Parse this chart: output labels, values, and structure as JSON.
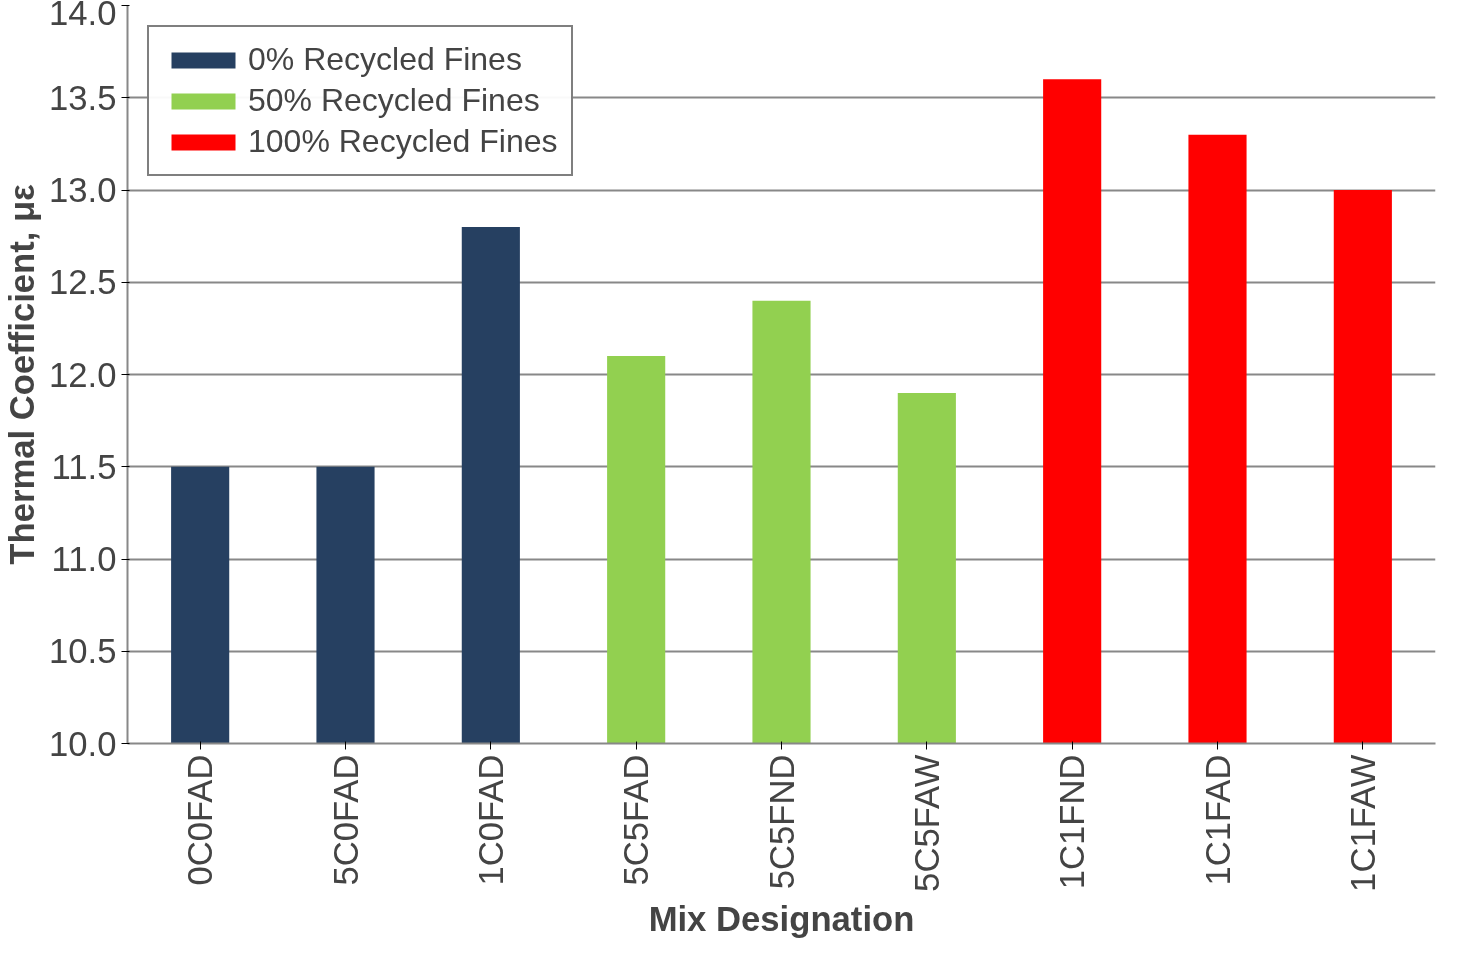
{
  "chart_data": {
    "type": "bar",
    "xlabel": "Mix Designation",
    "ylabel": "Thermal Coefficient, με",
    "categories": [
      "0C0FAD",
      "5C0FAD",
      "1C0FAD",
      "5C5FAD",
      "5C5FND",
      "5C5FAW",
      "1C1FND",
      "1C1FAD",
      "1C1FAW"
    ],
    "series": [
      {
        "name": "0% Recycled Fines",
        "color": "#264061",
        "values": [
          11.5,
          11.5,
          12.8,
          null,
          null,
          null,
          null,
          null,
          null
        ]
      },
      {
        "name": "50% Recycled Fines",
        "color": "#92d050",
        "values": [
          null,
          null,
          null,
          12.1,
          12.4,
          11.9,
          null,
          null,
          null
        ]
      },
      {
        "name": "100% Recycled Fines",
        "color": "#ff0000",
        "values": [
          null,
          null,
          null,
          null,
          null,
          null,
          13.6,
          13.3,
          13.0
        ]
      }
    ],
    "ylim": [
      10,
      14
    ],
    "yticks": [
      {
        "value": 10,
        "label": "10.0"
      },
      10.5,
      {
        "value": 11,
        "label": "11.0"
      },
      11.5,
      {
        "value": 12,
        "label": "12.0"
      },
      12.5,
      {
        "value": 13,
        "label": "13.0"
      },
      13.5,
      {
        "value": 14,
        "label": "14.0"
      }
    ],
    "grid": "y",
    "legend": "top left"
  }
}
